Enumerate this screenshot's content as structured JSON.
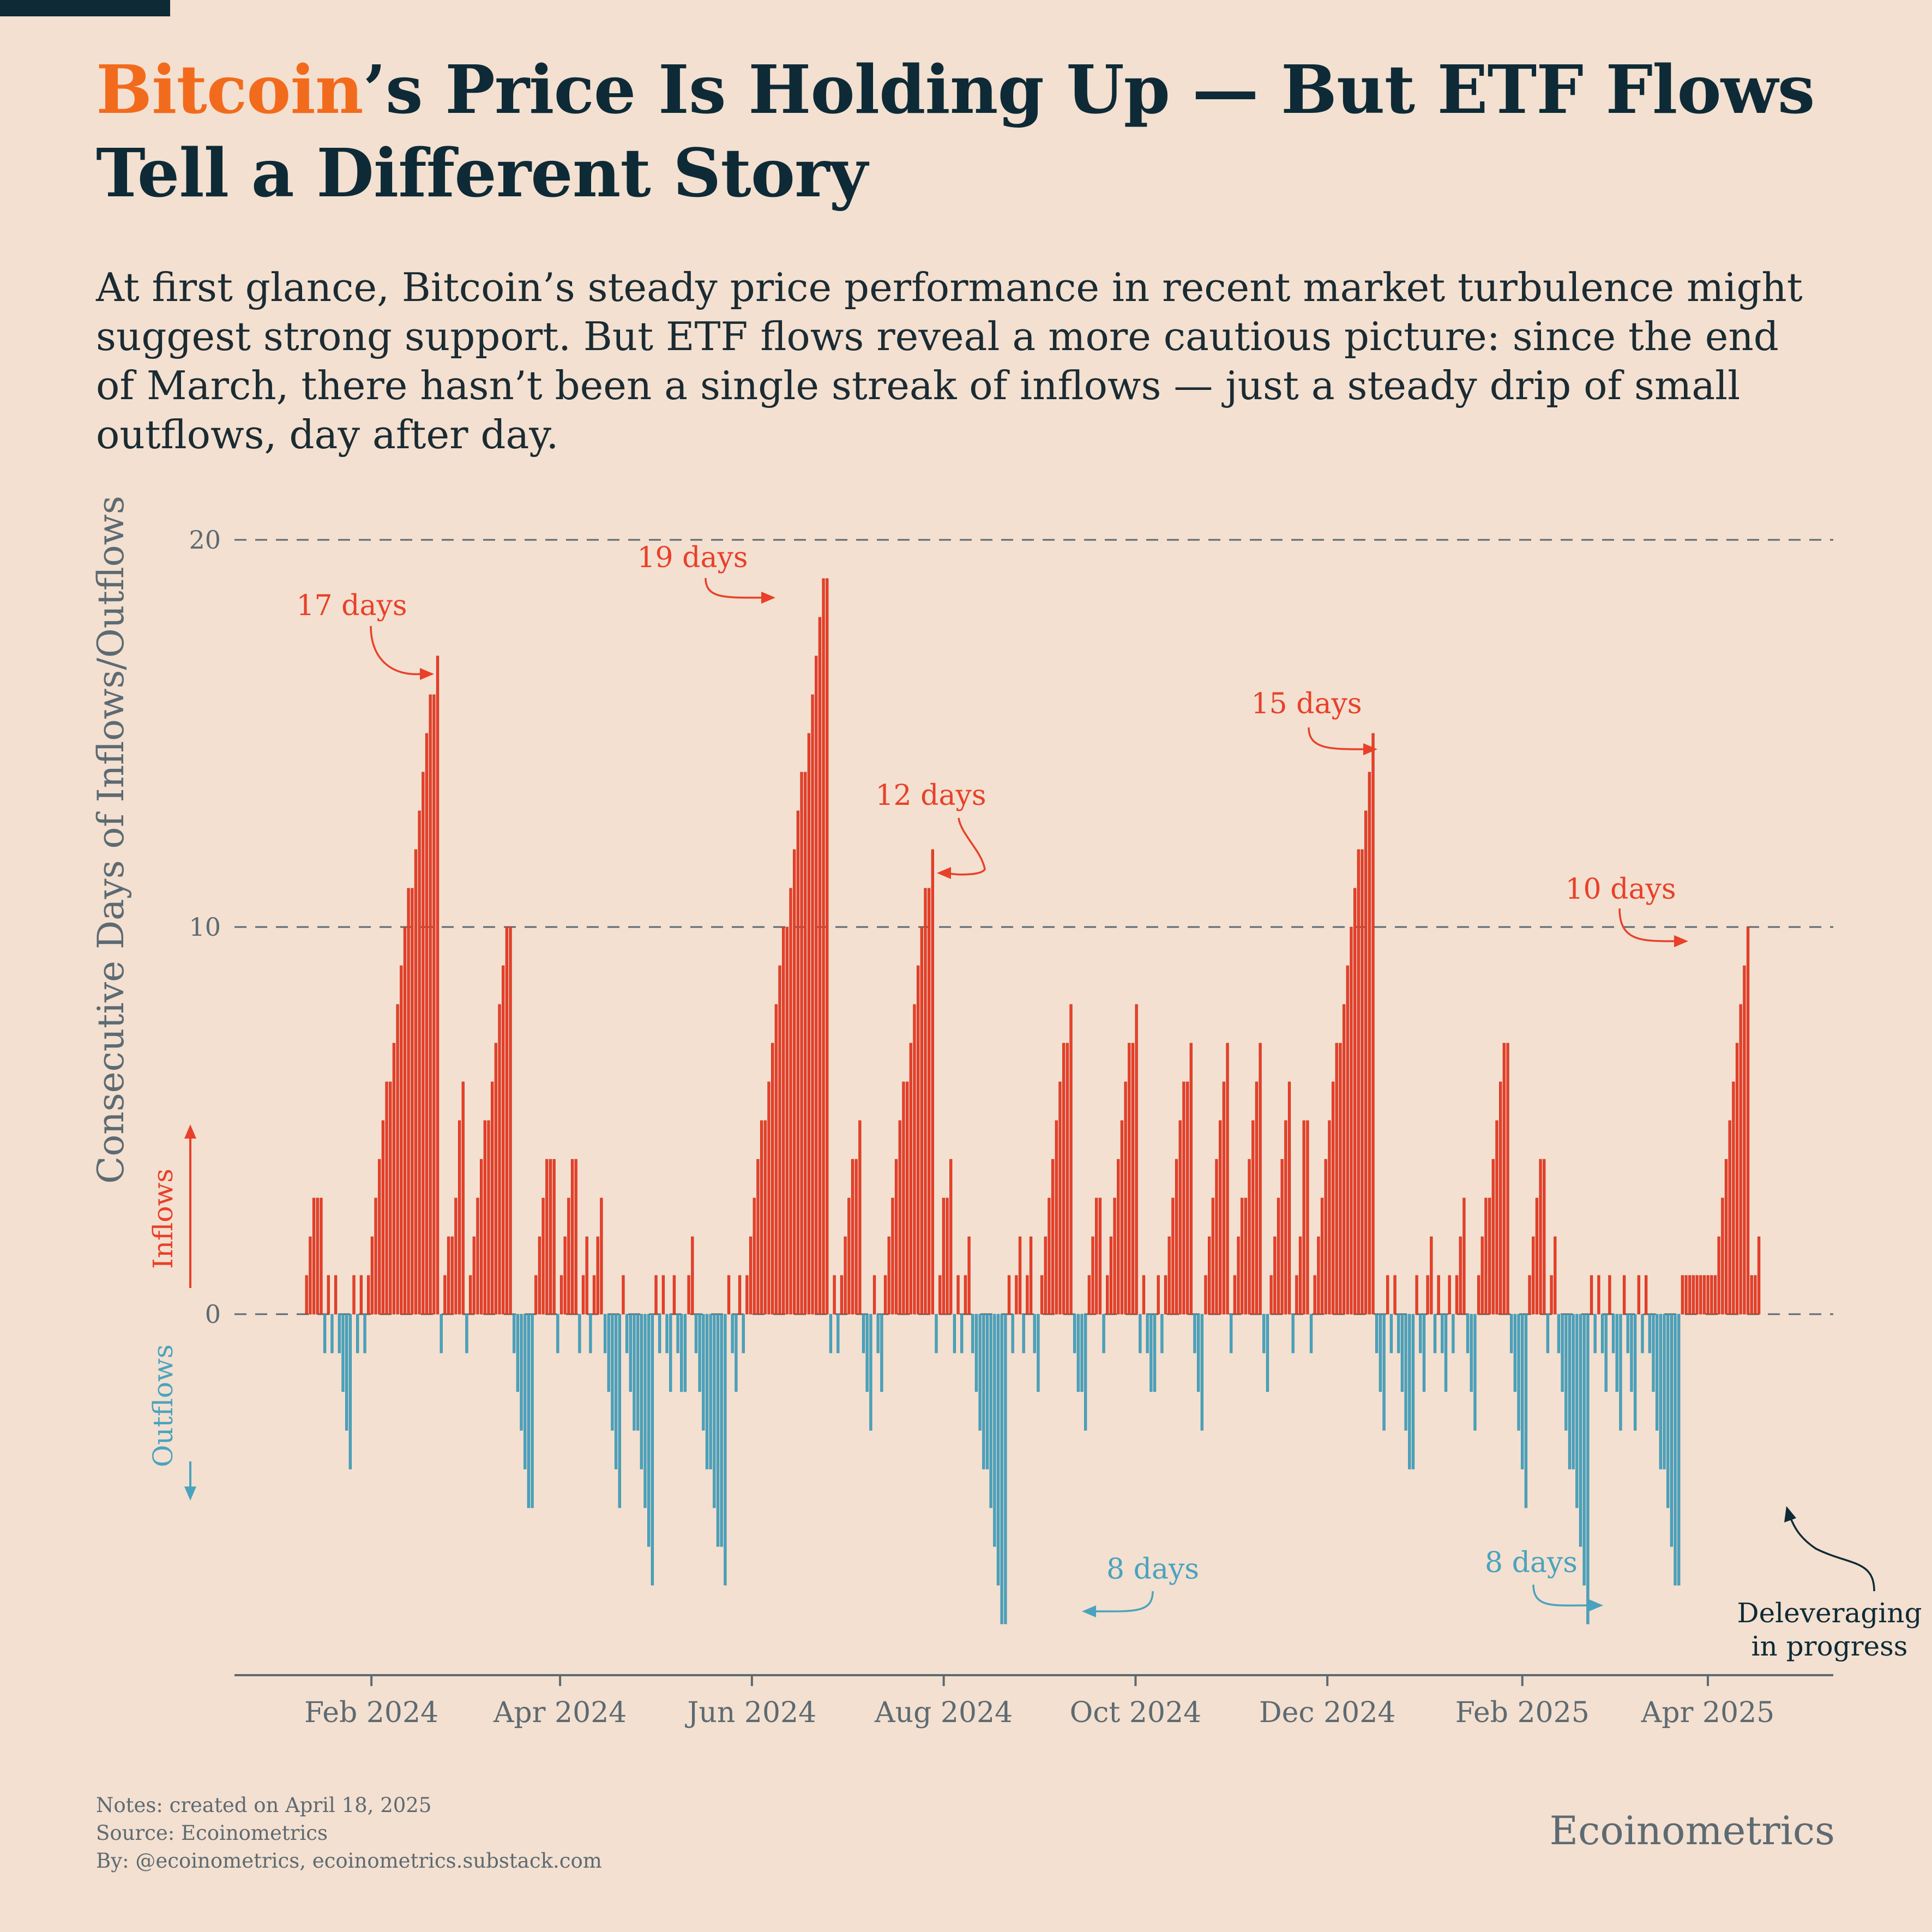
{
  "header": {
    "title_highlight": "Bitcoin",
    "title_rest": "’s Price Is Holding Up — But ETF Flows Tell a Different Story",
    "subtitle": "At first glance, Bitcoin’s steady price performance in recent market turbulence might suggest strong support. But ETF flows reveal a more cautious picture: since the end of March, there hasn’t been a single streak of inflows — just a steady drip of small outflows, day after day."
  },
  "footer": {
    "notes": "Notes: created on April 18, 2025",
    "source": "Source: Ecoinometrics",
    "by": "By: @ecoinometrics, ecoinometrics.substack.com",
    "brand": "Ecoinometrics"
  },
  "colors": {
    "background": "#f3e0d0",
    "inflow": "#e8402a",
    "outflow": "#4aa3be",
    "title_accent": "#f26b1d",
    "text": "#0e2a36",
    "muted": "#5d6a72"
  },
  "chart_data": {
    "type": "bar",
    "title": "",
    "ylabel": "Consecutive Days of Inflows/Outflows",
    "direction_labels": {
      "up": "Inflows",
      "down": "Outflows"
    },
    "ylim": [
      -9,
      20
    ],
    "yticks": [
      0,
      10,
      20
    ],
    "grid": "dashed horizontal lines at 0, 10, 20",
    "xlim": [
      "2024-01-11",
      "2025-04-18"
    ],
    "xticks": [
      {
        "date": "2024-02-01",
        "label": "Feb 2024"
      },
      {
        "date": "2024-04-01",
        "label": "Apr 2024"
      },
      {
        "date": "2024-06-01",
        "label": "Jun 2024"
      },
      {
        "date": "2024-08-01",
        "label": "Aug 2024"
      },
      {
        "date": "2024-10-01",
        "label": "Oct 2024"
      },
      {
        "date": "2024-12-01",
        "label": "Dec 2024"
      },
      {
        "date": "2025-02-01",
        "label": "Feb 2025"
      },
      {
        "date": "2025-04-01",
        "label": "Apr 2025"
      }
    ],
    "series": [
      {
        "name": "Inflows",
        "color": "#e8402a",
        "values": [
          1,
          2,
          3,
          3,
          3,
          1,
          1,
          1,
          1,
          1,
          2,
          3,
          4,
          5,
          6,
          6,
          7,
          8,
          9,
          10,
          11,
          11,
          12,
          13,
          14,
          15,
          16,
          16,
          17,
          1,
          2,
          2,
          3,
          5,
          6,
          1,
          2,
          3,
          4,
          5,
          5,
          6,
          7,
          8,
          9,
          10,
          10,
          1,
          2,
          3,
          4,
          4,
          4,
          1,
          2,
          3,
          4,
          4,
          1,
          2,
          1,
          2,
          3,
          1,
          1,
          1,
          1,
          1,
          2,
          1,
          1,
          1,
          2,
          3,
          4,
          5,
          5,
          6,
          7,
          8,
          9,
          10,
          10,
          11,
          12,
          13,
          14,
          14,
          15,
          16,
          17,
          18,
          19,
          19,
          1,
          1,
          2,
          3,
          4,
          4,
          5,
          1,
          1,
          2,
          3,
          4,
          5,
          6,
          6,
          7,
          8,
          9,
          10,
          11,
          11,
          12,
          1,
          3,
          3,
          4,
          1,
          1,
          2,
          1,
          1,
          2,
          1,
          2,
          1,
          2,
          3,
          4,
          5,
          6,
          7,
          7,
          8,
          1,
          2,
          3,
          3,
          1,
          2,
          3,
          4,
          5,
          6,
          7,
          7,
          8,
          1,
          1,
          1,
          2,
          3,
          4,
          5,
          6,
          6,
          7,
          1,
          2,
          3,
          4,
          5,
          6,
          7,
          1,
          2,
          3,
          3,
          4,
          5,
          6,
          7,
          1,
          2,
          3,
          4,
          5,
          6,
          1,
          2,
          5,
          5,
          1,
          2,
          3,
          4,
          5,
          6,
          7,
          7,
          8,
          9,
          10,
          11,
          12,
          12,
          13,
          14,
          15,
          1,
          1,
          1,
          1,
          2,
          1,
          1,
          1,
          2,
          3,
          1,
          2,
          3,
          3,
          4,
          5,
          6,
          7,
          7,
          1,
          2,
          3,
          4,
          4,
          1,
          2,
          1,
          1,
          1,
          1,
          1,
          1,
          1,
          1,
          1,
          1,
          1,
          1,
          1,
          1,
          1,
          1,
          2,
          3,
          4,
          5,
          6,
          7,
          8,
          9,
          10,
          1,
          1,
          2
        ],
        "value_dates_note": "daily streak counts for inflow days (trading days, chronological)"
      },
      {
        "name": "Outflows",
        "color": "#4aa3be",
        "values": [
          -1,
          -1,
          -1,
          -2,
          -3,
          -4,
          -1,
          -1,
          -1,
          -1,
          -1,
          -2,
          -3,
          -4,
          -5,
          -5,
          -1,
          -1,
          -1,
          -1,
          -2,
          -3,
          -4,
          -5,
          -1,
          -2,
          -3,
          -3,
          -4,
          -5,
          -6,
          -7,
          -1,
          -1,
          -2,
          -1,
          -2,
          -2,
          -1,
          -2,
          -3,
          -4,
          -4,
          -5,
          -6,
          -6,
          -7,
          -1,
          -2,
          -1,
          -1,
          -1,
          -1,
          -2,
          -3,
          -1,
          -2,
          -1,
          -1,
          -1,
          -1,
          -2,
          -3,
          -4,
          -4,
          -5,
          -6,
          -7,
          -8,
          -8,
          -1,
          -1,
          -1,
          -2,
          -1,
          -2,
          -2,
          -3,
          -1,
          -1,
          -1,
          -2,
          -2,
          -1,
          -1,
          -2,
          -3,
          -1,
          -1,
          -2,
          -1,
          -1,
          -1,
          -2,
          -3,
          -1,
          -1,
          -2,
          -3,
          -4,
          -4,
          -1,
          -2,
          -1,
          -1,
          -2,
          -1,
          -1,
          -2,
          -3,
          -1,
          -2,
          -3,
          -4,
          -5,
          -1,
          -1,
          -2,
          -3,
          -4,
          -4,
          -5,
          -6,
          -7,
          -8,
          -1,
          -1,
          -2,
          -1,
          -2,
          -3,
          -1,
          -2,
          -3,
          -1,
          -1,
          -2,
          -3,
          -4,
          -4,
          -5,
          -6,
          -7,
          -7
        ],
        "value_dates_note": "daily streak counts for outflow days (trading days, chronological)"
      }
    ],
    "annotations": [
      {
        "text": "17 days",
        "date": "2024-03-12",
        "value": 17,
        "series": "Inflows"
      },
      {
        "text": "19 days",
        "date": "2024-06-14",
        "value": 19,
        "series": "Inflows"
      },
      {
        "text": "12 days",
        "date": "2024-07-26",
        "value": 12,
        "series": "Inflows"
      },
      {
        "text": "15 days",
        "date": "2024-12-18",
        "value": 15,
        "series": "Inflows"
      },
      {
        "text": "10 days",
        "date": "2025-03-28",
        "value": 10,
        "series": "Inflows"
      },
      {
        "text": "8 days",
        "date": "2024-09-06",
        "value": -8,
        "series": "Outflows"
      },
      {
        "text": "8 days",
        "date": "2025-03-10",
        "value": -8,
        "series": "Outflows"
      },
      {
        "text": "Deleveraging in progress",
        "date": "2025-04-16",
        "value": -5
      }
    ]
  }
}
